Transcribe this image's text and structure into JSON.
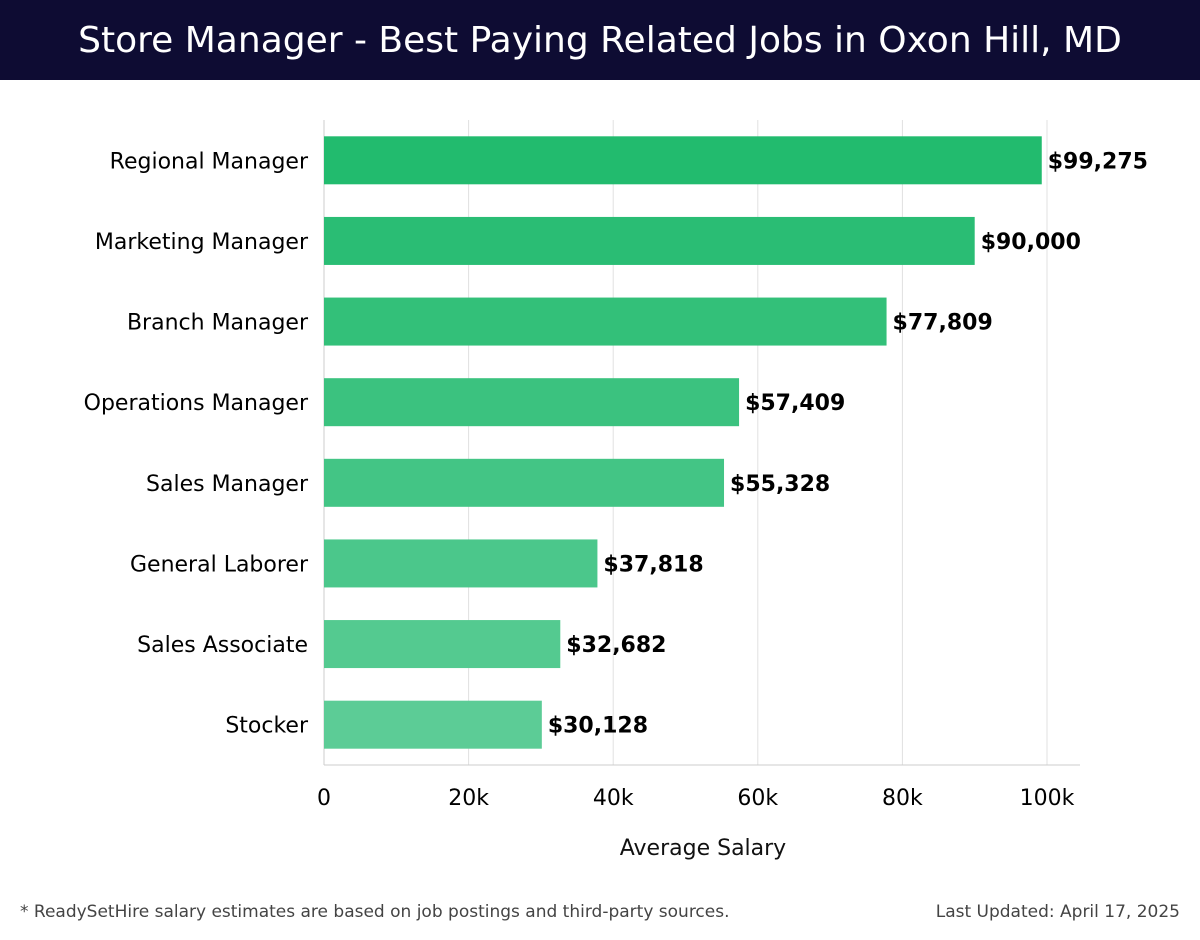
{
  "header": {
    "title": "Store Manager - Best Paying Related Jobs in Oxon Hill, MD"
  },
  "footer": {
    "note": "* ReadySetHire salary estimates are based on job postings and third-party sources.",
    "last_updated": "Last Updated: April 17, 2025"
  },
  "chart_data": {
    "type": "bar",
    "orientation": "horizontal",
    "title": "Store Manager - Best Paying Related Jobs in Oxon Hill, MD",
    "xlabel": "Average Salary",
    "ylabel": "",
    "xlim": [
      0,
      104500
    ],
    "x_ticks": [
      0,
      20000,
      40000,
      60000,
      80000,
      100000
    ],
    "x_tick_labels": [
      "0",
      "20k",
      "40k",
      "60k",
      "80k",
      "100k"
    ],
    "grid": "vertical",
    "legend": "none",
    "categories": [
      "Regional Manager",
      "Marketing Manager",
      "Branch Manager",
      "Operations Manager",
      "Sales Manager",
      "General Laborer",
      "Sales Associate",
      "Stocker"
    ],
    "values": [
      99275,
      90000,
      77809,
      57409,
      55328,
      37818,
      32682,
      30128
    ],
    "data_labels": [
      "$99,275",
      "$90,000",
      "$77,809",
      "$57,409",
      "$55,328",
      "$37,818",
      "$32,682",
      "$30,128"
    ],
    "colors": {
      "bar_top": "#22bb6e",
      "bar_bottom": "#5ccc96",
      "grid": "#e0e0e0",
      "axis": "#cccccc",
      "text": "#000000"
    }
  }
}
